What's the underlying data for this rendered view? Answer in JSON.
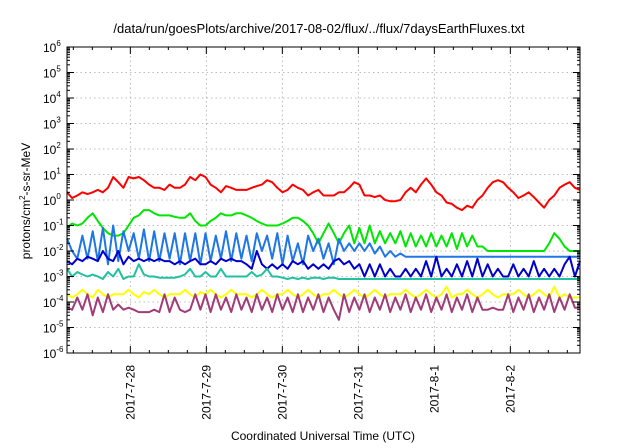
{
  "chart_data": {
    "type": "line",
    "title": "/data/run/goesPlots/archive/2017-08-02/flux/../flux/7daysEarthFluxes.txt",
    "xlabel": "Coordinated Universal Time (UTC)",
    "ylabel": {
      "pre": "protons/cm",
      "sup": "2",
      "post": "-s-sr-MeV"
    },
    "yscale": "log",
    "ylim_exp": [
      -6,
      6
    ],
    "y_ticks": [
      {
        "base": "10",
        "exp": "-6"
      },
      {
        "base": "10",
        "exp": "-5"
      },
      {
        "base": "10",
        "exp": "-4"
      },
      {
        "base": "10",
        "exp": "-3"
      },
      {
        "base": "10",
        "exp": "-2"
      },
      {
        "base": "10",
        "exp": "-1"
      },
      {
        "base": "10",
        "exp": "0"
      },
      {
        "base": "10",
        "exp": "1"
      },
      {
        "base": "10",
        "exp": "2"
      },
      {
        "base": "10",
        "exp": "3"
      },
      {
        "base": "10",
        "exp": "4"
      },
      {
        "base": "10",
        "exp": "5"
      },
      {
        "base": "10",
        "exp": "6"
      }
    ],
    "xlim": [
      "2017-07-27T04:00",
      "2017-08-02T22:00"
    ],
    "x_ticks": [
      "2017-7-28",
      "2017-7-29",
      "2017-7-30",
      "2017-7-31",
      "2017-8-1",
      "2017-8-2"
    ],
    "grid": true,
    "series": [
      {
        "color": "#ff0000",
        "values": [
          2,
          1.2,
          1.5,
          2,
          1.7,
          2,
          2.5,
          2,
          3,
          8,
          5,
          3,
          8,
          7,
          8,
          6,
          4,
          3,
          3,
          2.5,
          4,
          3,
          3,
          4,
          8,
          6,
          10,
          8,
          4,
          3,
          2,
          3.5,
          3,
          2.5,
          2.5,
          2.5,
          3,
          3.5,
          4,
          6,
          5,
          3,
          2,
          2.5,
          4,
          3,
          2.5,
          1.5,
          2,
          2.5,
          1.5,
          1.5,
          1.5,
          2,
          2,
          3,
          5,
          4,
          1.5,
          1.5,
          1.3,
          1.5,
          1,
          0.9,
          0.9,
          1,
          2,
          3,
          2,
          4,
          7,
          4,
          2,
          1.5,
          0.8,
          0.7,
          0.5,
          0.4,
          0.6,
          0.5,
          1,
          1.5,
          3,
          5,
          6,
          5,
          3,
          2,
          1.2,
          1.5,
          2,
          1.3,
          0.8,
          0.5,
          1,
          1.5,
          3,
          4,
          5,
          3,
          2.5
        ]
      },
      {
        "color": "#00e600",
        "values": [
          0.08,
          0.12,
          0.1,
          0.12,
          0.2,
          0.3,
          0.15,
          0.08,
          0.05,
          0.04,
          0.04,
          0.05,
          0.1,
          0.2,
          0.25,
          0.4,
          0.4,
          0.3,
          0.25,
          0.25,
          0.25,
          0.22,
          0.2,
          0.2,
          0.3,
          0.15,
          0.1,
          0.1,
          0.15,
          0.2,
          0.3,
          0.25,
          0.25,
          0.3,
          0.3,
          0.25,
          0.2,
          0.15,
          0.12,
          0.1,
          0.1,
          0.1,
          0.12,
          0.15,
          0.2,
          0.2,
          0.15,
          0.1,
          0.05,
          0.02,
          0.05,
          0.12,
          0.05,
          0.02,
          0.05,
          0.1,
          0.02,
          0.08,
          0.02,
          0.1,
          0.02,
          0.06,
          0.02,
          0.05,
          0.02,
          0.06,
          0.015,
          0.05,
          0.015,
          0.04,
          0.015,
          0.05,
          0.015,
          0.04,
          0.015,
          0.05,
          0.012,
          0.05,
          0.015,
          0.04,
          0.015,
          0.015,
          0.01,
          0.01,
          0.01,
          0.01,
          0.01,
          0.01,
          0.01,
          0.01,
          0.01,
          0.01,
          0.01,
          0.01,
          0.02,
          0.05,
          0.03,
          0.015,
          0.01,
          0.01,
          0.01
        ]
      },
      {
        "color": "#1f77e6",
        "values": [
          0.03,
          0.01,
          0.005,
          0.04,
          0.005,
          0.06,
          0.004,
          0.08,
          0.003,
          0.1,
          0.004,
          0.06,
          0.01,
          0.05,
          0.005,
          0.07,
          0.004,
          0.06,
          0.004,
          0.05,
          0.005,
          0.05,
          0.003,
          0.05,
          0.004,
          0.05,
          0.003,
          0.05,
          0.004,
          0.04,
          0.005,
          0.06,
          0.004,
          0.05,
          0.005,
          0.04,
          0.004,
          0.05,
          0.01,
          0.04,
          0.005,
          0.05,
          0.003,
          0.04,
          0.004,
          0.02,
          0.003,
          0.04,
          0.01,
          0.03,
          0.005,
          0.02,
          0.003,
          0.03,
          0.01,
          0.02,
          0.01,
          0.02,
          0.01,
          0.02,
          0.008,
          0.015,
          0.006,
          0.01,
          0.006,
          0.008,
          0.006,
          0.006,
          0.006,
          0.006,
          0.006,
          0.006,
          0.006,
          0.006,
          0.006,
          0.006,
          0.006,
          0.006,
          0.006,
          0.006,
          0.006,
          0.006,
          0.006,
          0.006,
          0.006,
          0.006,
          0.006,
          0.006,
          0.006,
          0.006,
          0.006,
          0.006,
          0.006,
          0.006,
          0.006,
          0.006,
          0.006,
          0.006,
          0.006,
          0.006,
          0.006
        ]
      },
      {
        "color": "#0000cc",
        "values": [
          0.004,
          0.003,
          0.005,
          0.004,
          0.006,
          0.005,
          0.004,
          0.01,
          0.005,
          0.004,
          0.01,
          0.003,
          0.006,
          0.004,
          0.005,
          0.004,
          0.005,
          0.004,
          0.005,
          0.004,
          0.004,
          0.003,
          0.004,
          0.003,
          0.004,
          0.005,
          0.003,
          0.003,
          0.004,
          0.003,
          0.005,
          0.004,
          0.005,
          0.004,
          0.004,
          0.003,
          0.002,
          0.01,
          0.003,
          0.002,
          0.003,
          0.002,
          0.003,
          0.002,
          0.004,
          0.003,
          0.004,
          0.002,
          0.003,
          0.002,
          0.003,
          0.002,
          0.004,
          0.005,
          0.003,
          0.004,
          0.002,
          0.003,
          0.001,
          0.003,
          0.001,
          0.003,
          0.001,
          0.002,
          0.001,
          0.001,
          0.002,
          0.001,
          0.002,
          0.001,
          0.004,
          0.001,
          0.006,
          0.001,
          0.002,
          0.001,
          0.003,
          0.001,
          0.004,
          0.001,
          0.005,
          0.001,
          0.003,
          0.001,
          0.002,
          0.001,
          0.001,
          0.003,
          0.001,
          0.002,
          0.001,
          0.004,
          0.001,
          0.002,
          0.001,
          0.002,
          0.001,
          0.003,
          0.006,
          0.001,
          0.004
        ]
      },
      {
        "color": "#20c0a0",
        "values": [
          0.002,
          0.001,
          0.0015,
          0.0012,
          0.001,
          0.0012,
          0.001,
          0.0008,
          0.0015,
          0.001,
          0.002,
          0.0008,
          0.001,
          0.001,
          0.003,
          0.0012,
          0.001,
          0.001,
          0.0009,
          0.0009,
          0.0009,
          0.0009,
          0.001,
          0.0012,
          0.002,
          0.001,
          0.001,
          0.0015,
          0.001,
          0.001,
          0.002,
          0.001,
          0.001,
          0.001,
          0.001,
          0.001,
          0.0015,
          0.001,
          0.0012,
          0.002,
          0.001,
          0.001,
          0.0009,
          0.0008,
          0.0009,
          0.0008,
          0.0009,
          0.0008,
          0.0009,
          0.0009,
          0.0008,
          0.0009,
          0.0009,
          0.0008,
          0.0008,
          0.0008,
          0.0008,
          0.0008,
          0.0008,
          0.0008,
          0.0008,
          0.0008,
          0.0008,
          0.0008,
          0.0008,
          0.0008,
          0.0008,
          0.0008,
          0.0008,
          0.0008,
          0.0008,
          0.0008,
          0.0008,
          0.0008,
          0.0008,
          0.0008,
          0.0008,
          0.0008,
          0.0008,
          0.0008,
          0.0008,
          0.0008,
          0.0008,
          0.0008,
          0.0008,
          0.0008,
          0.0008,
          0.0008,
          0.0008,
          0.0008,
          0.0008,
          0.0008,
          0.0008,
          0.0008,
          0.0008,
          0.0008,
          0.0008,
          0.0008,
          0.0008,
          0.0008,
          0.0008
        ]
      },
      {
        "color": "#ffff00",
        "values": [
          0.0002,
          0.00015,
          0.0002,
          0.0003,
          0.0002,
          0.00015,
          0.0003,
          0.0002,
          0.00015,
          0.0002,
          0.0002,
          0.0002,
          0.0003,
          0.0002,
          0.00015,
          0.00025,
          0.0002,
          0.0003,
          0.0002,
          0.00015,
          0.0002,
          0.0002,
          0.0002,
          0.0003,
          0.0002,
          0.00015,
          0.00025,
          0.0002,
          0.0003,
          0.0002,
          0.00015,
          0.0002,
          0.0003,
          0.0002,
          0.0002,
          0.0002,
          0.00015,
          0.0002,
          0.0003,
          0.0002,
          0.00015,
          0.0002,
          0.0002,
          0.0003,
          0.0002,
          0.00015,
          0.0002,
          0.0003,
          0.0002,
          0.00015,
          0.0002,
          0.0002,
          0.0003,
          0.0002,
          0.00015,
          0.0002,
          0.0003,
          0.0002,
          0.00015,
          0.0002,
          0.0003,
          0.0002,
          0.00015,
          0.0002,
          0.0002,
          0.0002,
          0.0003,
          0.0002,
          0.00015,
          0.0002,
          0.0003,
          0.0002,
          0.00015,
          0.0002,
          0.0004,
          0.00015,
          0.0002,
          0.0002,
          0.0003,
          0.0002,
          0.00015,
          0.0002,
          0.0003,
          0.0002,
          0.00015,
          0.0002,
          0.0002,
          0.0002,
          0.0003,
          0.0002,
          0.00015,
          0.0002,
          0.0003,
          0.0002,
          0.00015,
          0.0004,
          0.00015,
          0.0002,
          0.00015,
          0.00015,
          0.00015
        ]
      },
      {
        "color": "#a03c78",
        "values": [
          6e-05,
          5e-05,
          0.00015,
          5e-05,
          0.0002,
          3e-05,
          0.00015,
          4e-05,
          0.0002,
          5e-05,
          8e-05,
          5e-05,
          6e-05,
          5e-05,
          4e-05,
          4e-05,
          4e-05,
          5e-05,
          4e-05,
          0.0002,
          4e-05,
          0.00015,
          5e-05,
          4e-05,
          5e-05,
          0.0002,
          5e-05,
          0.0002,
          4e-05,
          0.0002,
          5e-05,
          0.00015,
          4e-05,
          0.0002,
          5e-05,
          0.00015,
          4e-05,
          0.0002,
          5e-05,
          0.00015,
          4e-05,
          0.0002,
          5e-05,
          0.00015,
          4e-05,
          0.0002,
          4e-05,
          0.00015,
          5e-05,
          0.0002,
          4e-05,
          0.00015,
          5e-05,
          2e-05,
          0.0002,
          4e-05,
          0.00015,
          5e-05,
          0.0002,
          4e-05,
          0.00015,
          5e-05,
          0.0002,
          4e-05,
          0.00015,
          5e-05,
          0.0002,
          4e-05,
          0.00015,
          5e-05,
          0.0002,
          4e-05,
          0.00015,
          5e-05,
          0.0002,
          4e-05,
          0.00015,
          5e-05,
          0.0002,
          4e-05,
          0.00015,
          5e-05,
          5e-05,
          6e-05,
          5e-05,
          5e-05,
          0.0002,
          4e-05,
          0.00015,
          5e-05,
          0.0002,
          4e-05,
          0.00015,
          5e-05,
          0.0002,
          4e-05,
          0.00015,
          5e-05,
          0.0002,
          6e-05,
          6e-05
        ]
      }
    ]
  }
}
